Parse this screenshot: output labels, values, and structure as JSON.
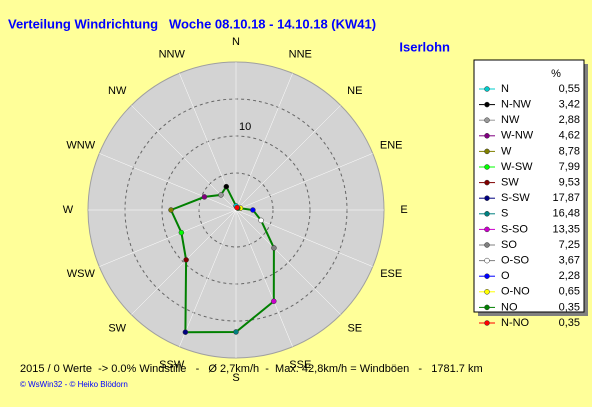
{
  "chart_data": {
    "type": "polar",
    "title": "Verteilung Windrichtung   Woche 08.10.18 - 14.10.18 (KW41)",
    "location": "Iserlohn",
    "directions": [
      "N",
      "NNE",
      "NE",
      "ENE",
      "E",
      "ESE",
      "SE",
      "SSE",
      "S",
      "SSW",
      "SW",
      "WSW",
      "W",
      "WNW",
      "NW",
      "NNW"
    ],
    "legend_header": "%",
    "series": [
      {
        "name": "N",
        "color": "#00cccc",
        "value": 0.55,
        "value_label": "0,55"
      },
      {
        "name": "N-NW",
        "color": "#000000",
        "value": 3.42,
        "value_label": "3,42"
      },
      {
        "name": "NW",
        "color": "#999999",
        "value": 2.88,
        "value_label": "2,88"
      },
      {
        "name": "W-NW",
        "color": "#800080",
        "value": 4.62,
        "value_label": "4,62"
      },
      {
        "name": "W",
        "color": "#808000",
        "value": 8.78,
        "value_label": "8,78"
      },
      {
        "name": "W-SW",
        "color": "#00ff00",
        "value": 7.99,
        "value_label": "7,99"
      },
      {
        "name": "SW",
        "color": "#800000",
        "value": 9.53,
        "value_label": "9,53"
      },
      {
        "name": "S-SW",
        "color": "#000080",
        "value": 17.87,
        "value_label": "17,87"
      },
      {
        "name": "S",
        "color": "#008080",
        "value": 16.48,
        "value_label": "16,48"
      },
      {
        "name": "S-SO",
        "color": "#cc00cc",
        "value": 13.35,
        "value_label": "13,35"
      },
      {
        "name": "SO",
        "color": "#808080",
        "value": 7.25,
        "value_label": "7,25"
      },
      {
        "name": "O-SO",
        "color": "#ffffff",
        "value": 3.67,
        "value_label": "3,67"
      },
      {
        "name": "O",
        "color": "#0000ff",
        "value": 2.28,
        "value_label": "2,28"
      },
      {
        "name": "O-NO",
        "color": "#ffff00",
        "value": 0.65,
        "value_label": "0,65"
      },
      {
        "name": "NO",
        "color": "#008000",
        "value": 0.35,
        "value_label": "0,35"
      },
      {
        "name": "N-NO",
        "color": "#ff0000",
        "value": 0.35,
        "value_label": "0,35"
      }
    ],
    "line_color": "#008000",
    "rlim": [
      0,
      20
    ],
    "rticks": [
      10
    ],
    "rgrid": [
      5,
      10,
      15
    ],
    "footer": "2015 / 0 Werte  -> 0.0% Windstille   -   Ø 2,7km/h  -  Max. 42,8km/h = Windböen   -   1781.7 km",
    "credits": "© WsWin32  - © Heiko Blödorn"
  }
}
